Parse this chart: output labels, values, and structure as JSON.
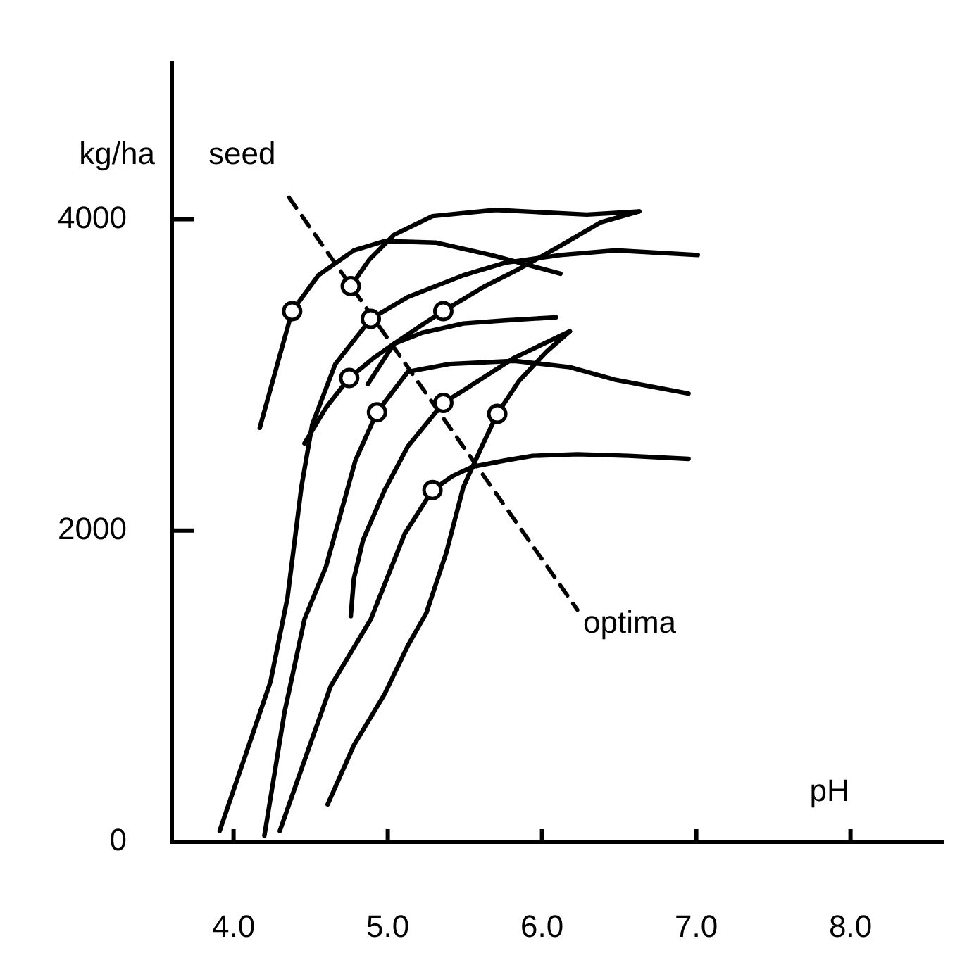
{
  "chart_data": {
    "type": "line",
    "title": "seed",
    "xlabel": "pH",
    "ylabel": "kg/ha",
    "marker": "none",
    "line_style": "solid",
    "xlim": [
      3.6,
      8.6
    ],
    "ylim": [
      0,
      5000
    ],
    "xticks": [
      {
        "value": 4,
        "label": "4.0"
      },
      {
        "value": 5,
        "label": "5.0"
      },
      {
        "value": 6,
        "label": "6.0"
      },
      {
        "value": 7,
        "label": "7.0"
      },
      {
        "value": 8,
        "label": "8.0"
      }
    ],
    "yticks": [
      0,
      2000,
      4000
    ],
    "series": [
      {
        "color": "#000000",
        "x": [
          4.17,
          4.29,
          4.38,
          4.55,
          4.78,
          4.98,
          5.31,
          5.67,
          6.12
        ],
        "values": [
          2660,
          3090,
          3410,
          3640,
          3800,
          3860,
          3850,
          3770,
          3650
        ]
      },
      {
        "color": "#000000",
        "x": [
          4.76,
          4.88,
          5.04,
          5.29,
          5.7,
          6.29,
          6.63
        ],
        "values": [
          3570,
          3740,
          3900,
          4020,
          4060,
          4030,
          4050
        ]
      },
      {
        "color": "#000000",
        "x": [
          3.91,
          4.24,
          4.35,
          4.44,
          4.51,
          4.66,
          4.89,
          5.13,
          5.49,
          5.76,
          6.12,
          6.48,
          7.01
        ],
        "values": [
          70,
          1030,
          1570,
          2280,
          2680,
          3070,
          3360,
          3500,
          3640,
          3720,
          3770,
          3800,
          3770
        ]
      },
      {
        "color": "#000000",
        "x": [
          4.87,
          5.04,
          5.22,
          5.36,
          5.63,
          5.85,
          6.12,
          6.38,
          6.63
        ],
        "values": [
          2940,
          3200,
          3320,
          3410,
          3570,
          3680,
          3830,
          3980,
          4050
        ]
      },
      {
        "color": "#000000",
        "x": [
          4.46,
          4.6,
          4.75,
          4.91,
          5.04,
          5.22,
          5.49,
          5.76,
          6.09
        ],
        "values": [
          2560,
          2790,
          2980,
          3110,
          3200,
          3270,
          3330,
          3350,
          3370
        ]
      },
      {
        "color": "#000000",
        "x": [
          4.2,
          4.33,
          4.46,
          4.6,
          4.79,
          4.93,
          5.13,
          5.4,
          5.82,
          6.18,
          6.47,
          6.95
        ],
        "values": [
          40,
          830,
          1430,
          1770,
          2450,
          2760,
          3020,
          3070,
          3090,
          3050,
          2970,
          2880
        ]
      },
      {
        "color": "#000000",
        "x": [
          4.76,
          4.78,
          4.84,
          4.98,
          5.13,
          5.36,
          5.49,
          5.82,
          6.18
        ],
        "values": [
          1450,
          1690,
          1940,
          2260,
          2540,
          2820,
          2900,
          3110,
          3280
        ]
      },
      {
        "color": "#000000",
        "x": [
          4.3,
          4.42,
          4.63,
          4.89,
          5.11,
          5.22,
          5.29,
          5.42,
          5.55,
          5.76,
          5.94,
          6.23,
          6.56,
          6.95
        ],
        "values": [
          70,
          410,
          1000,
          1430,
          1980,
          2150,
          2260,
          2350,
          2410,
          2450,
          2480,
          2490,
          2480,
          2460
        ]
      },
      {
        "color": "#000000",
        "x": [
          4.61,
          4.78,
          4.98,
          5.13,
          5.25,
          5.38,
          5.49,
          5.61,
          5.71,
          5.85,
          6.03,
          6.18
        ],
        "values": [
          240,
          620,
          950,
          1260,
          1470,
          1860,
          2280,
          2540,
          2750,
          2960,
          3150,
          3280
        ]
      },
      {
        "type": "line",
        "name": "optima",
        "color": "#000000",
        "line_style": "dashed",
        "x": [
          4.36,
          6.23
        ],
        "values": [
          4140,
          1490
        ]
      },
      {
        "type": "scatter",
        "marker": "circle",
        "color": "#000000",
        "x": [
          4.38,
          4.76,
          4.89,
          5.36,
          4.75,
          4.93,
          5.36,
          5.71,
          5.29
        ],
        "values": [
          3410,
          3570,
          3360,
          3410,
          2980,
          2760,
          2820,
          2750,
          2260
        ]
      }
    ]
  }
}
